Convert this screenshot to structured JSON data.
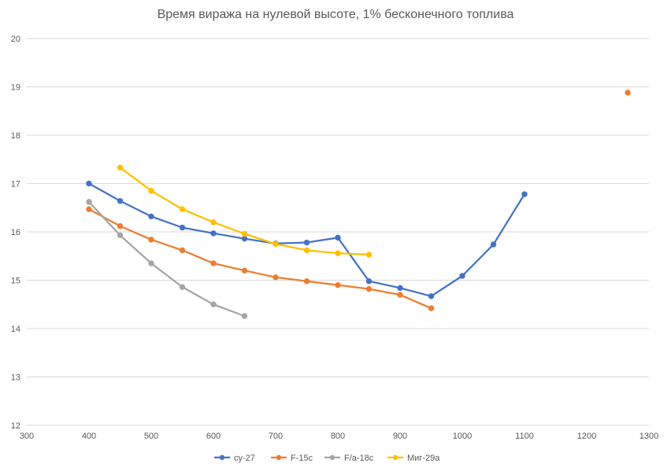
{
  "chart_data": {
    "type": "scatter",
    "title": "Время виража на нулевой высоте, 1% бесконечного топлива",
    "xlabel": "",
    "ylabel": "",
    "xlim": [
      300,
      1300
    ],
    "ylim": [
      12,
      20
    ],
    "x_ticks": [
      300,
      400,
      500,
      600,
      700,
      800,
      900,
      1000,
      1100,
      1200,
      1300
    ],
    "y_ticks": [
      12,
      13,
      14,
      15,
      16,
      17,
      18,
      19,
      20
    ],
    "grid": "horizontal",
    "legend_position": "bottom",
    "series": [
      {
        "name": "су-27",
        "color": "#4472C4",
        "points": [
          [
            400,
            17.0
          ],
          [
            450,
            16.64
          ],
          [
            500,
            16.32
          ],
          [
            550,
            16.09
          ],
          [
            600,
            15.97
          ],
          [
            650,
            15.86
          ],
          [
            700,
            15.76
          ],
          [
            750,
            15.78
          ],
          [
            800,
            15.88
          ],
          [
            850,
            14.98
          ],
          [
            900,
            14.84
          ],
          [
            950,
            14.67
          ],
          [
            1000,
            15.09
          ],
          [
            1050,
            15.74
          ],
          [
            1100,
            16.78
          ]
        ]
      },
      {
        "name": "F-15c",
        "color": "#ED7D31",
        "points": [
          [
            400,
            16.47
          ],
          [
            450,
            16.12
          ],
          [
            500,
            15.84
          ],
          [
            550,
            15.62
          ],
          [
            600,
            15.35
          ],
          [
            650,
            15.2
          ],
          [
            700,
            15.06
          ],
          [
            750,
            14.98
          ],
          [
            800,
            14.9
          ],
          [
            850,
            14.82
          ],
          [
            900,
            14.7
          ],
          [
            950,
            14.42
          ],
          [
            1266,
            18.88
          ]
        ]
      },
      {
        "name": "F/a-18c",
        "color": "#A5A5A5",
        "points": [
          [
            400,
            16.62
          ],
          [
            450,
            15.93
          ],
          [
            500,
            15.35
          ],
          [
            550,
            14.86
          ],
          [
            600,
            14.5
          ],
          [
            650,
            14.26
          ]
        ]
      },
      {
        "name": "Миг-29а",
        "color": "#FFC000",
        "points": [
          [
            450,
            17.33
          ],
          [
            500,
            16.85
          ],
          [
            550,
            16.47
          ],
          [
            600,
            16.2
          ],
          [
            650,
            15.96
          ],
          [
            700,
            15.75
          ],
          [
            750,
            15.62
          ],
          [
            800,
            15.56
          ],
          [
            850,
            15.53
          ]
        ]
      }
    ]
  }
}
